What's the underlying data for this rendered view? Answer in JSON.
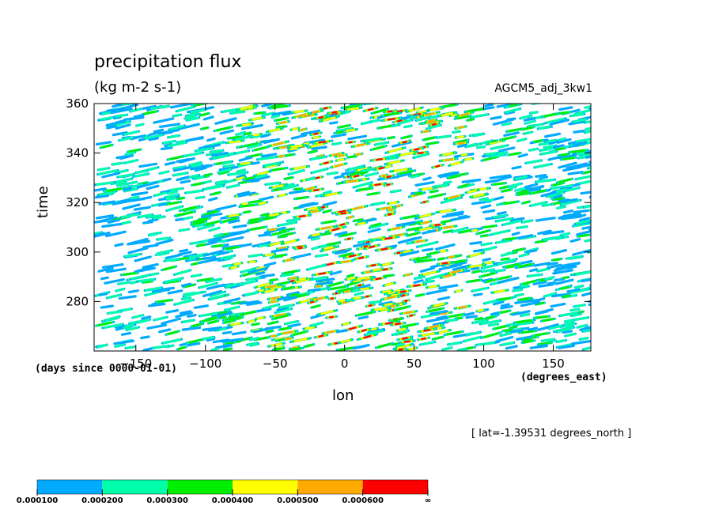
{
  "chart_data": {
    "type": "heatmap",
    "title": "precipitation flux",
    "units_label": "(kg m-2 s-1)",
    "model_label": "AGCM5_adj_3kw1",
    "xlabel": "lon",
    "xunits": "(degrees_east)",
    "ylabel": "time",
    "yunits": "(days since 0000-01-01)",
    "xlim": [
      -180,
      177
    ],
    "ylim": [
      260,
      360
    ],
    "xticks": [
      -150,
      -100,
      -50,
      0,
      50,
      100,
      150
    ],
    "yticks": [
      280,
      300,
      320,
      340,
      360
    ],
    "annotation": "[ lat=-1.39531 degrees_north ]",
    "colorbar": {
      "levels": [
        "0.000100",
        "0.000200",
        "0.000300",
        "0.000400",
        "0.000500",
        "0.000600",
        "∞"
      ],
      "colors": [
        "#00aaff",
        "#00ffaa",
        "#00ee00",
        "#ffff00",
        "#ffaa00",
        "#ff0000"
      ]
    }
  }
}
